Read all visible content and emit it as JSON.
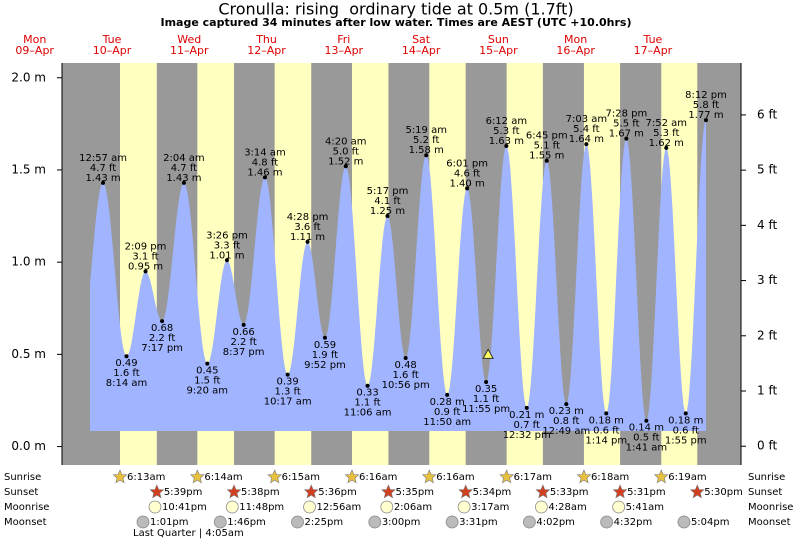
{
  "chart_data": {
    "type": "tide",
    "title": "Cronulla: rising  ordinary tide at 0.5m (1.7ft)",
    "subtitle": "Image captured 34 minutes after low water. Times are AEST (UTC +10.0hrs)",
    "current_level": 0.5,
    "ylim": [
      -0.1,
      2.08
    ],
    "yticks": [
      {
        "value": 0,
        "label": "0.0 m"
      },
      {
        "value": 0.5,
        "label": "0.5 m"
      },
      {
        "value": 1,
        "label": "1.0 m"
      },
      {
        "value": 1.5,
        "label": "1.5 m"
      },
      {
        "value": 2,
        "label": "2.0 m"
      }
    ],
    "y2lim": [
      -0.34,
      6.94
    ],
    "y2ticks": [
      {
        "value": 0,
        "label": "0 ft"
      },
      {
        "value": 1,
        "label": "1 ft"
      },
      {
        "value": 2,
        "label": "2 ft"
      },
      {
        "value": 3,
        "label": "3 ft"
      },
      {
        "value": 4,
        "label": "4 ft"
      },
      {
        "value": 5,
        "label": "5 ft"
      },
      {
        "value": 6,
        "label": "6 ft"
      }
    ],
    "tide_color": "#a0b4ff",
    "night_color": "#999999",
    "day_color": "#ffffc0",
    "row_labels": {
      "sunrise": "Sunrise",
      "sunset": "Sunset",
      "moonrise": "Moonrise",
      "moonset": "Moonset"
    },
    "moon_phase": "Last Quarter | 4:05am",
    "days": [
      {
        "name": "Mon",
        "date": "09–Apr"
      },
      {
        "name": "Tue",
        "date": "10–Apr",
        "sunrise": "6:13am",
        "sunset": "5:39pm",
        "moonrise": "10:41pm",
        "moonset": "1:01pm",
        "tides": [
          {
            "time": "12:57 am",
            "ft": "4.7 ft",
            "value": 1.43,
            "value_label": "1.43 m"
          },
          {
            "time": "8:14 am",
            "ft": "1.6 ft",
            "value": 0.49,
            "value_label": "0.49"
          },
          {
            "time": "2:09 pm",
            "ft": "3.1 ft",
            "value": 0.95,
            "value_label": "0.95 m"
          },
          {
            "time": "7:17 pm",
            "ft": "2.2 ft",
            "value": 0.68,
            "value_label": "0.68"
          }
        ]
      },
      {
        "name": "Wed",
        "date": "11–Apr",
        "sunrise": "6:14am",
        "sunset": "5:38pm",
        "moonrise": "11:48pm",
        "moonset": "1:46pm",
        "tides": [
          {
            "time": "2:04 am",
            "ft": "4.7 ft",
            "value": 1.43,
            "value_label": "1.43 m"
          },
          {
            "time": "9:20 am",
            "ft": "1.5 ft",
            "value": 0.45,
            "value_label": "0.45"
          },
          {
            "time": "3:26 pm",
            "ft": "3.3 ft",
            "value": 1.01,
            "value_label": "1.01 m"
          },
          {
            "time": "8:37 pm",
            "ft": "2.2 ft",
            "value": 0.66,
            "value_label": "0.66"
          }
        ]
      },
      {
        "name": "Thu",
        "date": "12–Apr",
        "sunrise": "6:15am",
        "sunset": "5:36pm",
        "moonrise": "12:56am",
        "moonset": "2:25pm",
        "tides": [
          {
            "time": "3:14 am",
            "ft": "4.8 ft",
            "value": 1.46,
            "value_label": "1.46 m"
          },
          {
            "time": "10:17 am",
            "ft": "1.3 ft",
            "value": 0.39,
            "value_label": "0.39"
          },
          {
            "time": "4:28 pm",
            "ft": "3.6 ft",
            "value": 1.11,
            "value_label": "1.11 m"
          },
          {
            "time": "9:52 pm",
            "ft": "1.9 ft",
            "value": 0.59,
            "value_label": "0.59"
          }
        ]
      },
      {
        "name": "Fri",
        "date": "13–Apr",
        "sunrise": "6:16am",
        "sunset": "5:35pm",
        "moonrise": "2:06am",
        "moonset": "3:00pm",
        "tides": [
          {
            "time": "4:20 am",
            "ft": "5.0 ft",
            "value": 1.52,
            "value_label": "1.52 m"
          },
          {
            "time": "11:06 am",
            "ft": "1.1 ft",
            "value": 0.33,
            "value_label": "0.33"
          },
          {
            "time": "5:17 pm",
            "ft": "4.1 ft",
            "value": 1.25,
            "value_label": "1.25 m"
          },
          {
            "time": "10:56 pm",
            "ft": "1.6 ft",
            "value": 0.48,
            "value_label": "0.48"
          }
        ]
      },
      {
        "name": "Sat",
        "date": "14–Apr",
        "sunrise": "6:16am",
        "sunset": "5:34pm",
        "moonrise": "3:17am",
        "moonset": "3:31pm",
        "tides": [
          {
            "time": "5:19 am",
            "ft": "5.2 ft",
            "value": 1.58,
            "value_label": "1.58 m"
          },
          {
            "time": "11:50 am",
            "ft": "0.9 ft",
            "value": 0.28,
            "value_label": "0.28 m"
          },
          {
            "time": "6:01 pm",
            "ft": "4.6 ft",
            "value": 1.4,
            "value_label": "1.40 m"
          },
          {
            "time": "11:55 pm",
            "ft": "1.1 ft",
            "value": 0.35,
            "value_label": "0.35"
          }
        ]
      },
      {
        "name": "Sun",
        "date": "15–Apr",
        "sunrise": "6:17am",
        "sunset": "5:33pm",
        "moonrise": "4:28am",
        "moonset": "4:02pm",
        "tides": [
          {
            "time": "6:12 am",
            "ft": "5.3 ft",
            "value": 1.63,
            "value_label": "1.63 m"
          },
          {
            "time": "12:32 pm",
            "ft": "0.7 ft",
            "value": 0.21,
            "value_label": "0.21 m"
          },
          {
            "time": "6:45 pm",
            "ft": "5.1 ft",
            "value": 1.55,
            "value_label": "1.55 m"
          }
        ]
      },
      {
        "name": "Mon",
        "date": "16–Apr",
        "sunrise": "6:18am",
        "sunset": "5:31pm",
        "moonrise": "5:41am",
        "moonset": "4:32pm",
        "tides": [
          {
            "time": "12:49 am",
            "ft": "0.8 ft",
            "value": 0.23,
            "value_label": "0.23 m"
          },
          {
            "time": "7:03 am",
            "ft": "5.4 ft",
            "value": 1.64,
            "value_label": "1.64 m"
          },
          {
            "time": "1:14 pm",
            "ft": "0.6 ft",
            "value": 0.18,
            "value_label": "0.18 m"
          },
          {
            "time": "7:28 pm",
            "ft": "5.5 ft",
            "value": 1.67,
            "value_label": "1.67 m"
          }
        ]
      },
      {
        "name": "Tue",
        "date": "17–Apr",
        "sunrise": "6:19am",
        "sunset": "5:30pm",
        "moonset": "5:04pm",
        "tides": [
          {
            "time": "1:41 am",
            "ft": "0.5 ft",
            "value": 0.14,
            "value_label": "0.14 m"
          },
          {
            "time": "7:52 am",
            "ft": "5.3 ft",
            "value": 1.62,
            "value_label": "1.62 m"
          },
          {
            "time": "1:55 pm",
            "ft": "0.6 ft",
            "value": 0.18,
            "value_label": "0.18 m"
          },
          {
            "time": "8:12 pm",
            "ft": "5.8 ft",
            "value": 1.77,
            "value_label": "1.77 m"
          }
        ]
      }
    ]
  }
}
